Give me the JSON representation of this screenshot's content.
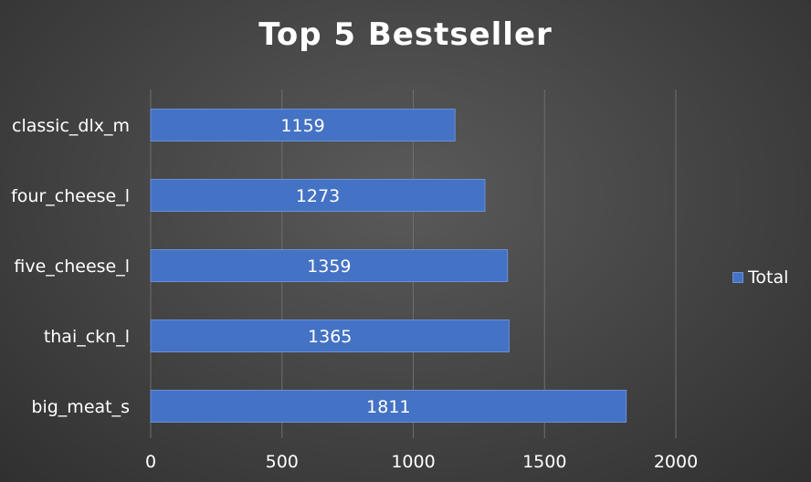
{
  "chart_data": {
    "type": "bar",
    "orientation": "horizontal",
    "title": "Top 5 Bestseller",
    "categories": [
      "classic_dlx_m",
      "four_cheese_l",
      "five_cheese_l",
      "thai_ckn_l",
      "big_meat_s"
    ],
    "series": [
      {
        "name": "Total",
        "values": [
          1159,
          1273,
          1359,
          1365,
          1811
        ],
        "color": "#4472c4"
      }
    ],
    "xlim": [
      0,
      2000
    ],
    "xticks": [
      0,
      500,
      1000,
      1500,
      2000
    ],
    "grid": true,
    "data_labels": true,
    "legend_position": "right"
  }
}
